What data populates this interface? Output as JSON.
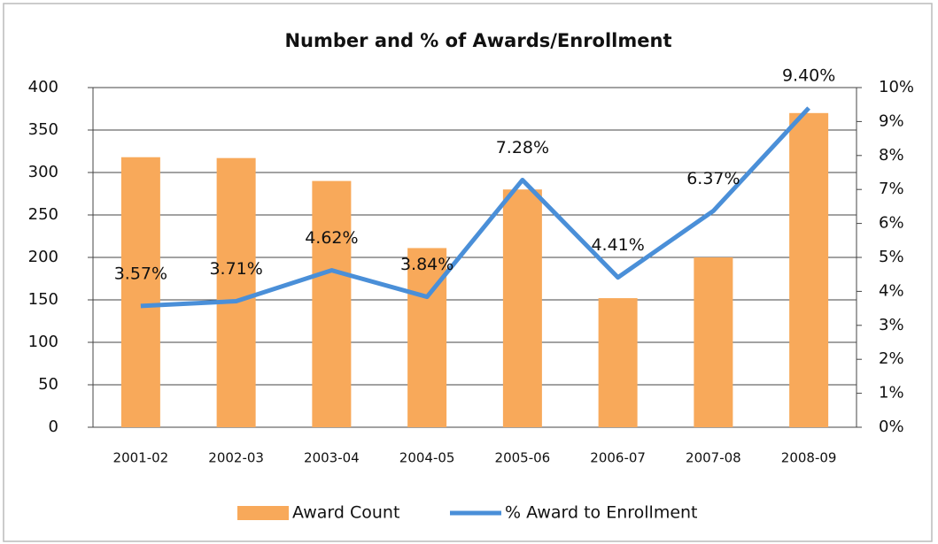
{
  "chart_data": {
    "type": "bar-line",
    "title": "Number and % of Awards/Enrollment",
    "categories": [
      "2001-02",
      "2002-03",
      "2003-04",
      "2004-05",
      "2005-06",
      "2006-07",
      "2007-08",
      "2008-09"
    ],
    "series": [
      {
        "name": "Award Count",
        "type": "bar",
        "color": "#f8a95a",
        "values": [
          318,
          317,
          290,
          211,
          280,
          152,
          200,
          370
        ]
      },
      {
        "name": "% Award to Enrollment",
        "type": "line",
        "axis": "y2",
        "color": "#4a8fd8",
        "values": [
          3.57,
          3.71,
          4.62,
          3.84,
          7.28,
          4.41,
          6.37,
          9.4
        ],
        "value_labels": [
          "3.57%",
          "3.71%",
          "4.62%",
          "3.84%",
          "7.28%",
          "4.41%",
          "6.37%",
          "9.40%"
        ]
      }
    ],
    "ylim": [
      0,
      400
    ],
    "yticks": [
      0,
      50,
      100,
      150,
      200,
      250,
      300,
      350,
      400
    ],
    "y2lim": [
      0,
      10
    ],
    "y2ticks": [
      {
        "value": 0,
        "label": "0%"
      },
      {
        "value": 1,
        "label": "1%"
      },
      {
        "value": 2,
        "label": "2%"
      },
      {
        "value": 3,
        "label": "3%"
      },
      {
        "value": 4,
        "label": "4%"
      },
      {
        "value": 5,
        "label": "5%"
      },
      {
        "value": 6,
        "label": "6%"
      },
      {
        "value": 7,
        "label": "7%"
      },
      {
        "value": 8,
        "label": "8%"
      },
      {
        "value": 9,
        "label": "9%"
      },
      {
        "value": 10,
        "label": "10%"
      }
    ],
    "grid": true,
    "legend": "bottom"
  }
}
